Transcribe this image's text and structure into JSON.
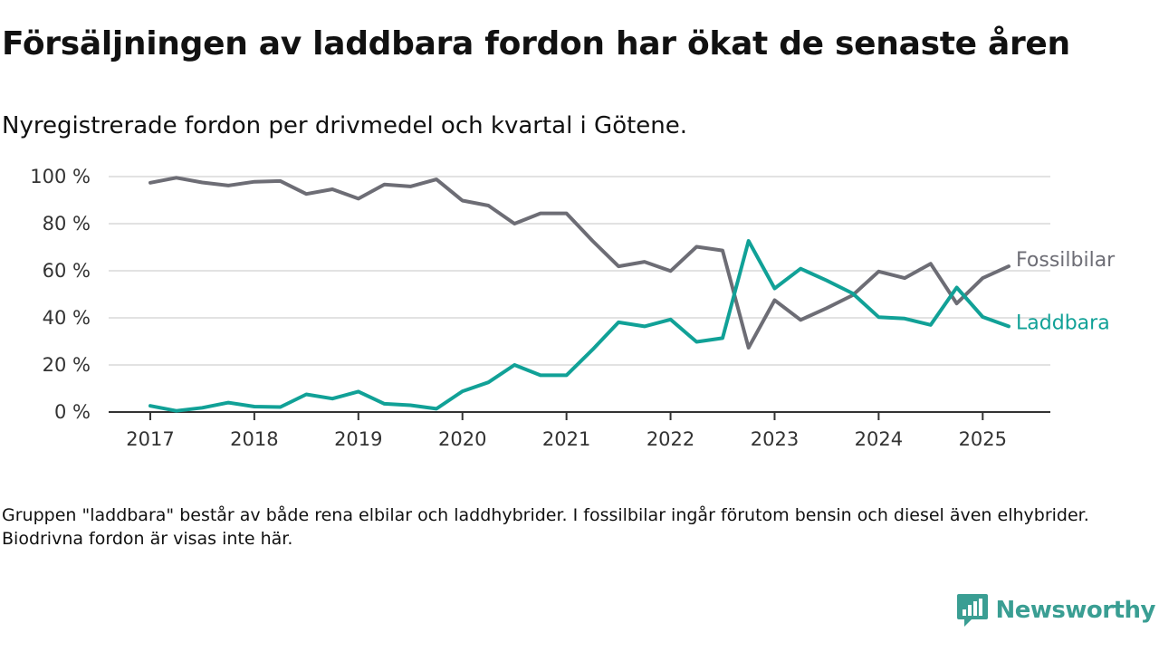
{
  "title": "Försäljningen av laddbara fordon har ökat de senaste åren",
  "subtitle": "Nyregistrerade fordon per drivmedel och kvartal i Götene.",
  "footnote": "Gruppen \"laddbara\" består av både rena elbilar och laddhybrider. I fossilbilar ingår förutom bensin och diesel även elhybrider. Biodrivna fordon är visas inte här.",
  "brand": {
    "name": "Newsworthy",
    "color": "#3a9e93"
  },
  "chart_data": {
    "type": "line",
    "title": "Försäljningen av laddbara fordon har ökat de senaste åren",
    "subtitle": "Nyregistrerade fordon per drivmedel och kvartal i Götene.",
    "xlabel": "",
    "ylabel": "",
    "x_start": 2017,
    "x_step": 0.25,
    "xlim": [
      2016.6,
      2025.65
    ],
    "ylim": [
      0,
      100
    ],
    "y_ticks": [
      0,
      20,
      40,
      60,
      80,
      100
    ],
    "y_tick_labels": [
      "0 %",
      "20 %",
      "40 %",
      "60 %",
      "80 %",
      "100 %"
    ],
    "x_ticks": [
      2017,
      2018,
      2019,
      2020,
      2021,
      2022,
      2023,
      2024,
      2025
    ],
    "x_tick_labels": [
      "2017",
      "2018",
      "2019",
      "2020",
      "2021",
      "2022",
      "2023",
      "2024",
      "2025"
    ],
    "grid": true,
    "legend": "end-of-line labels",
    "series": [
      {
        "name": "Fossilbilar",
        "color": "#6d6d75",
        "values": [
          97.4,
          99.5,
          97.5,
          96.2,
          97.8,
          98.1,
          92.6,
          94.6,
          90.6,
          96.6,
          95.8,
          98.8,
          89.8,
          87.7,
          80.0,
          84.4,
          84.4,
          72.7,
          61.9,
          63.8,
          59.9,
          70.2,
          68.6,
          27.3,
          47.5,
          39.1,
          44.1,
          49.6,
          59.7,
          56.9,
          63.0,
          46.1,
          56.9,
          61.9
        ]
      },
      {
        "name": "Laddbara",
        "color": "#11a197",
        "values": [
          2.6,
          0.5,
          1.8,
          4.0,
          2.3,
          2.1,
          7.5,
          5.7,
          8.7,
          3.5,
          2.9,
          1.4,
          8.8,
          12.6,
          20.0,
          15.6,
          15.6,
          26.5,
          38.1,
          36.4,
          39.3,
          29.8,
          31.4,
          72.7,
          52.5,
          60.9,
          55.9,
          50.4,
          40.3,
          39.7,
          37.0,
          52.9,
          40.4,
          36.4
        ]
      }
    ]
  }
}
